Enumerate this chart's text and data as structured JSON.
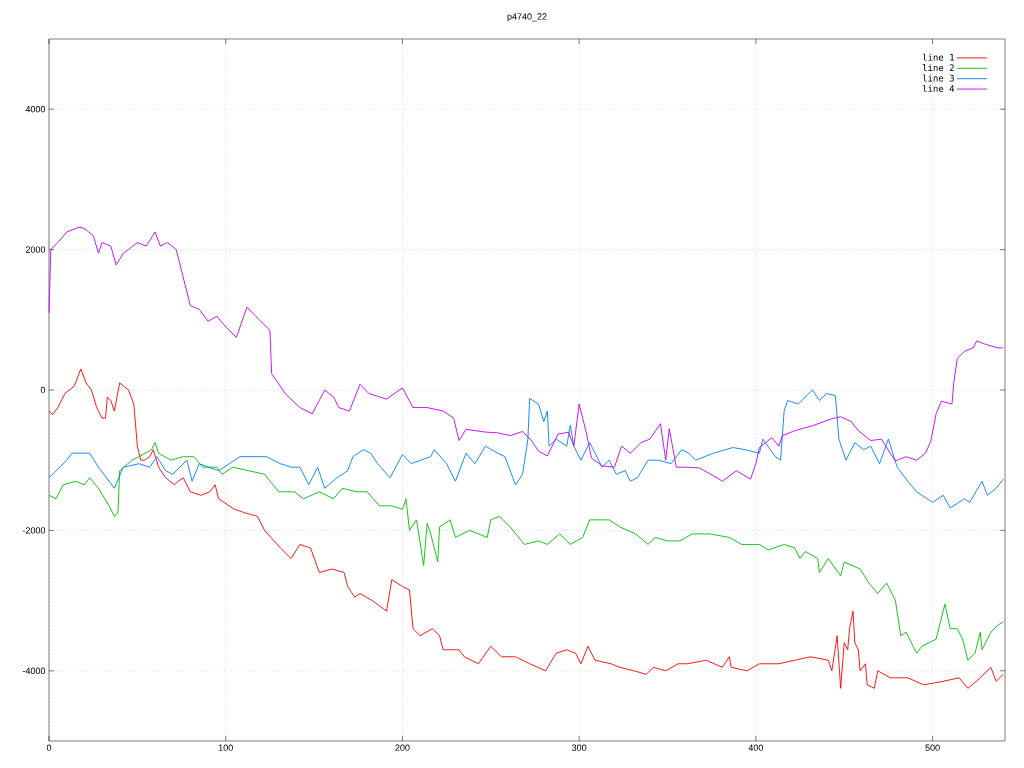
{
  "chart_data": {
    "type": "line",
    "title": "p4740_22",
    "xlim": [
      0,
      541
    ],
    "ylim": [
      -5000,
      5000
    ],
    "xticks": [
      0,
      100,
      200,
      300,
      400,
      500
    ],
    "yticks": [
      -4000,
      -2000,
      0,
      2000,
      4000
    ],
    "grid": true,
    "legend": "top right",
    "line_style": "solid",
    "series": [
      {
        "name": "line 1",
        "color": "#ff0000",
        "x": [
          0,
          2,
          5,
          9,
          14,
          15,
          18,
          21,
          24,
          27,
          30,
          32,
          33,
          35,
          37,
          40,
          45,
          48,
          50,
          52,
          54,
          57,
          59,
          62,
          66,
          71,
          73,
          76,
          80,
          86,
          91,
          94,
          96,
          105,
          111,
          118,
          122,
          131,
          137,
          142,
          148,
          153,
          160,
          167,
          169,
          173,
          176,
          183,
          191,
          194,
          200,
          204,
          206,
          210,
          217,
          221,
          223,
          232,
          235,
          243,
          250,
          256,
          264,
          272,
          281,
          287,
          293,
          298,
          301,
          305,
          309,
          318,
          323,
          331,
          338,
          342,
          349,
          356,
          361,
          372,
          381,
          385,
          386,
          395,
          402,
          413,
          422,
          431,
          441,
          443,
          446,
          448,
          450,
          452,
          453,
          455,
          456,
          458,
          459,
          462,
          463,
          467,
          469,
          476,
          486,
          495,
          506,
          515,
          520,
          527,
          533,
          536,
          540
        ],
        "values": [
          -300,
          -350,
          -250,
          -50,
          50,
          100,
          300,
          100,
          0,
          -250,
          -400,
          -400,
          -100,
          -150,
          -300,
          100,
          0,
          -200,
          -800,
          -1000,
          -1000,
          -950,
          -850,
          -1100,
          -1250,
          -1350,
          -1300,
          -1250,
          -1450,
          -1500,
          -1450,
          -1350,
          -1550,
          -1700,
          -1750,
          -1800,
          -2000,
          -2250,
          -2400,
          -2200,
          -2250,
          -2600,
          -2550,
          -2600,
          -2800,
          -2950,
          -2900,
          -3000,
          -3150,
          -2700,
          -2800,
          -2850,
          -3400,
          -3500,
          -3400,
          -3500,
          -3700,
          -3700,
          -3800,
          -3900,
          -3650,
          -3800,
          -3800,
          -3900,
          -4000,
          -3750,
          -3700,
          -3750,
          -3900,
          -3650,
          -3850,
          -3900,
          -3950,
          -4000,
          -4050,
          -3950,
          -4000,
          -3900,
          -3900,
          -3850,
          -3950,
          -3800,
          -3950,
          -4000,
          -3900,
          -3900,
          -3850,
          -3800,
          -3850,
          -4000,
          -3500,
          -4250,
          -3600,
          -3700,
          -3400,
          -3150,
          -3600,
          -3700,
          -4000,
          -3900,
          -4200,
          -4250,
          -4000,
          -4100,
          -4100,
          -4200,
          -4150,
          -4100,
          -4250,
          -4100,
          -3950,
          -4150,
          -4050
        ]
      },
      {
        "name": "line 2",
        "color": "#00c000",
        "x": [
          0,
          4,
          8,
          15,
          20,
          23,
          28,
          34,
          37,
          39,
          40,
          47,
          51,
          58,
          60,
          62,
          69,
          76,
          82,
          87,
          95,
          98,
          104,
          113,
          122,
          130,
          139,
          144,
          153,
          161,
          166,
          174,
          180,
          187,
          194,
          200,
          202,
          204,
          208,
          212,
          214,
          216,
          220,
          221,
          227,
          230,
          238,
          248,
          250,
          255,
          261,
          269,
          277,
          282,
          289,
          295,
          302,
          306,
          314,
          317,
          323,
          332,
          339,
          343,
          350,
          357,
          364,
          374,
          385,
          392,
          402,
          407,
          416,
          422,
          425,
          428,
          435,
          436,
          441,
          448,
          450,
          459,
          464,
          469,
          474,
          479,
          482,
          485,
          491,
          494,
          502,
          504,
          507,
          510,
          514,
          517,
          520,
          524,
          527,
          528,
          533,
          537,
          540
        ],
        "values": [
          -1500,
          -1550,
          -1350,
          -1300,
          -1350,
          -1250,
          -1400,
          -1650,
          -1800,
          -1750,
          -1150,
          -1000,
          -950,
          -850,
          -750,
          -900,
          -1000,
          -950,
          -950,
          -1100,
          -1100,
          -1200,
          -1100,
          -1150,
          -1200,
          -1450,
          -1450,
          -1550,
          -1450,
          -1550,
          -1400,
          -1450,
          -1450,
          -1650,
          -1650,
          -1700,
          -1550,
          -2000,
          -1850,
          -2500,
          -1900,
          -2050,
          -2450,
          -1950,
          -1850,
          -2100,
          -2000,
          -2100,
          -1850,
          -1800,
          -1950,
          -2200,
          -2150,
          -2200,
          -2050,
          -2200,
          -2100,
          -1850,
          -1850,
          -1850,
          -1950,
          -2050,
          -2200,
          -2100,
          -2150,
          -2150,
          -2050,
          -2050,
          -2100,
          -2200,
          -2200,
          -2280,
          -2200,
          -2250,
          -2400,
          -2300,
          -2400,
          -2600,
          -2400,
          -2650,
          -2450,
          -2550,
          -2750,
          -2900,
          -2750,
          -3000,
          -3500,
          -3450,
          -3750,
          -3650,
          -3550,
          -3350,
          -3050,
          -3400,
          -3400,
          -3550,
          -3850,
          -3750,
          -3450,
          -3700,
          -3450,
          -3350,
          -3300
        ]
      },
      {
        "name": "line 3",
        "color": "#0080ff",
        "x": [
          0,
          10,
          13,
          23,
          28,
          37,
          42,
          51,
          57,
          61,
          66,
          70,
          78,
          81,
          85,
          96,
          102,
          108,
          123,
          131,
          137,
          142,
          147,
          152,
          156,
          163,
          169,
          172,
          178,
          182,
          186,
          193,
          200,
          205,
          216,
          218,
          225,
          230,
          236,
          241,
          247,
          254,
          258,
          264,
          268,
          271,
          272,
          277,
          280,
          282,
          283,
          287,
          293,
          295,
          297,
          301,
          306,
          313,
          317,
          321,
          326,
          329,
          333,
          339,
          345,
          352,
          358,
          362,
          366,
          376,
          387,
          394,
          402,
          404,
          411,
          414,
          416,
          418,
          424,
          432,
          436,
          440,
          445,
          447,
          451,
          456,
          461,
          465,
          470,
          475,
          480,
          486,
          491,
          500,
          506,
          510,
          518,
          521,
          528,
          531,
          536,
          540
        ],
        "values": [
          -1250,
          -1000,
          -900,
          -900,
          -1100,
          -1400,
          -1100,
          -1050,
          -1100,
          -950,
          -1150,
          -1200,
          -1000,
          -1300,
          -1050,
          -1150,
          -1050,
          -950,
          -950,
          -1050,
          -1100,
          -1100,
          -1350,
          -1100,
          -1400,
          -1250,
          -1150,
          -950,
          -850,
          -900,
          -1050,
          -1250,
          -920,
          -1050,
          -950,
          -850,
          -1050,
          -1300,
          -900,
          -1050,
          -800,
          -900,
          -950,
          -1350,
          -1200,
          -700,
          -120,
          -200,
          -450,
          -300,
          -800,
          -700,
          -800,
          -500,
          -800,
          -1000,
          -750,
          -1100,
          -1000,
          -1200,
          -1150,
          -1300,
          -1250,
          -1000,
          -1000,
          -1050,
          -850,
          -900,
          -1000,
          -900,
          -820,
          -850,
          -900,
          -700,
          -950,
          -1000,
          -300,
          -150,
          -200,
          0,
          -150,
          -50,
          -80,
          -700,
          -1000,
          -750,
          -850,
          -800,
          -1050,
          -700,
          -1100,
          -1300,
          -1450,
          -1600,
          -1500,
          -1680,
          -1550,
          -1600,
          -1300,
          -1500,
          -1400,
          -1270
        ]
      },
      {
        "name": "line 4",
        "color": "#c000ff",
        "x": [
          0,
          1,
          5,
          10,
          17,
          20,
          25,
          28,
          30,
          35,
          38,
          42,
          45,
          50,
          55,
          60,
          63,
          67,
          72,
          74,
          80,
          85,
          90,
          95,
          100,
          106,
          112,
          117,
          125,
          126,
          134,
          142,
          149,
          156,
          161,
          164,
          170,
          176,
          181,
          191,
          200,
          206,
          214,
          223,
          229,
          232,
          236,
          247,
          254,
          261,
          268,
          273,
          277,
          282,
          288,
          294,
          297,
          300,
          304,
          307,
          313,
          320,
          324,
          329,
          335,
          340,
          346,
          349,
          351,
          355,
          360,
          368,
          378,
          381,
          389,
          397,
          400,
          402,
          409,
          413,
          415,
          422,
          432,
          443,
          448,
          454,
          458,
          465,
          471,
          476,
          479,
          485,
          491,
          496,
          499,
          502,
          505,
          511,
          512,
          514,
          518,
          523,
          525,
          530,
          537,
          540
        ],
        "values": [
          1100,
          2000,
          2100,
          2250,
          2320,
          2300,
          2200,
          1950,
          2100,
          2050,
          1780,
          1950,
          2000,
          2100,
          2050,
          2250,
          2050,
          2100,
          2000,
          1800,
          1200,
          1150,
          980,
          1050,
          900,
          750,
          1180,
          1050,
          850,
          230,
          -60,
          -250,
          -340,
          0,
          -100,
          -250,
          -300,
          80,
          -50,
          -130,
          30,
          -250,
          -250,
          -300,
          -400,
          -720,
          -560,
          -600,
          -610,
          -650,
          -590,
          -720,
          -870,
          -940,
          -630,
          -600,
          -800,
          -200,
          -600,
          -970,
          -1080,
          -1100,
          -800,
          -900,
          -750,
          -700,
          -480,
          -1000,
          -550,
          -1100,
          -1100,
          -1110,
          -1250,
          -1300,
          -1150,
          -1270,
          -1050,
          -820,
          -680,
          -800,
          -650,
          -580,
          -510,
          -410,
          -380,
          -450,
          -580,
          -720,
          -700,
          -900,
          -1010,
          -950,
          -1000,
          -900,
          -730,
          -340,
          -160,
          -200,
          100,
          450,
          550,
          600,
          700,
          650,
          600,
          600
        ]
      }
    ]
  }
}
